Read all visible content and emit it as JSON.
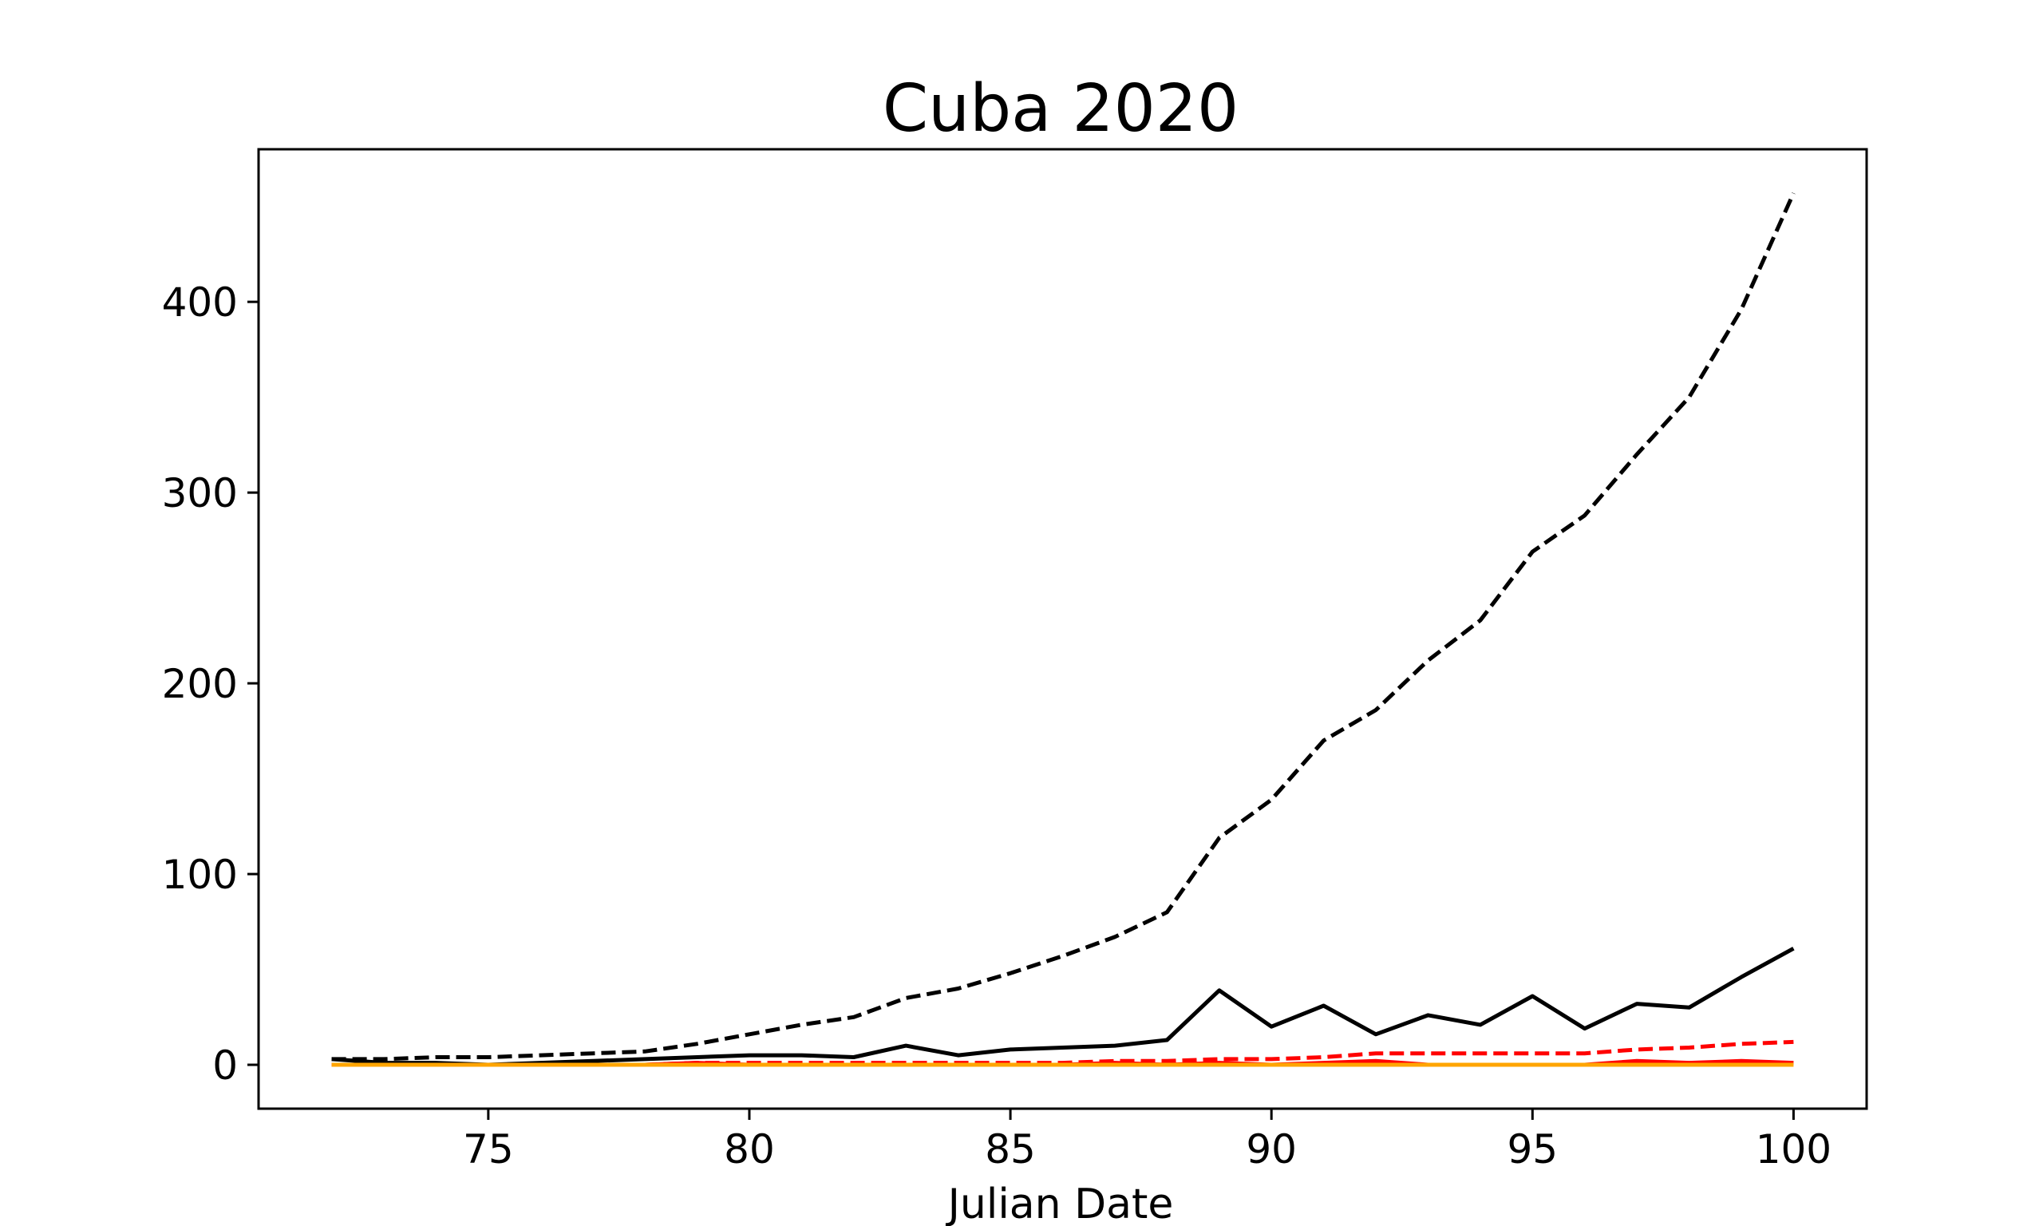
{
  "chart_data": {
    "type": "line",
    "title": "Cuba 2020",
    "xlabel": "Julian Date",
    "ylabel": "",
    "xlim": [
      70.6,
      101.4
    ],
    "ylim": [
      -23,
      480
    ],
    "xticks": [
      75,
      80,
      85,
      90,
      95,
      100
    ],
    "yticks": [
      0,
      100,
      200,
      300,
      400
    ],
    "grid": false,
    "x": [
      72,
      73,
      74,
      75,
      76,
      77,
      78,
      79,
      80,
      81,
      82,
      83,
      84,
      85,
      86,
      87,
      88,
      89,
      90,
      91,
      92,
      93,
      94,
      95,
      96,
      97,
      98,
      99,
      100
    ],
    "series": [
      {
        "color": "#000000",
        "dash": true,
        "values": [
          3,
          3,
          4,
          4,
          5,
          6,
          7,
          11,
          16,
          21,
          25,
          35,
          40,
          48,
          57,
          67,
          80,
          119,
          139,
          170,
          186,
          212,
          233,
          269,
          288,
          320,
          350,
          396,
          457
        ]
      },
      {
        "color": "#000000",
        "dash": false,
        "values": [
          3,
          1,
          1,
          0,
          1,
          2,
          3,
          4,
          5,
          5,
          4,
          10,
          5,
          8,
          9,
          10,
          13,
          39,
          20,
          31,
          16,
          26,
          21,
          36,
          19,
          32,
          30,
          46,
          61
        ]
      },
      {
        "color": "#ff0000",
        "dash": true,
        "values": [
          0,
          0,
          0,
          0,
          0,
          0,
          0,
          1,
          1,
          1,
          1,
          1,
          1,
          1,
          1,
          2,
          2,
          3,
          3,
          4,
          6,
          6,
          6,
          6,
          6,
          8,
          9,
          11,
          12
        ]
      },
      {
        "color": "#ff0000",
        "dash": false,
        "values": [
          0,
          0,
          0,
          0,
          0,
          0,
          0,
          1,
          0,
          0,
          0,
          0,
          0,
          0,
          0,
          1,
          0,
          1,
          0,
          1,
          2,
          0,
          0,
          0,
          0,
          2,
          1,
          2,
          1
        ]
      },
      {
        "color": "#ffa500",
        "dash": false,
        "values": [
          0,
          0,
          0,
          0,
          0,
          0,
          0,
          0,
          0,
          0,
          0,
          0,
          0,
          0,
          0,
          0,
          0,
          0,
          0,
          0,
          0,
          0,
          0,
          0,
          0,
          0,
          0,
          0,
          0
        ]
      }
    ]
  }
}
